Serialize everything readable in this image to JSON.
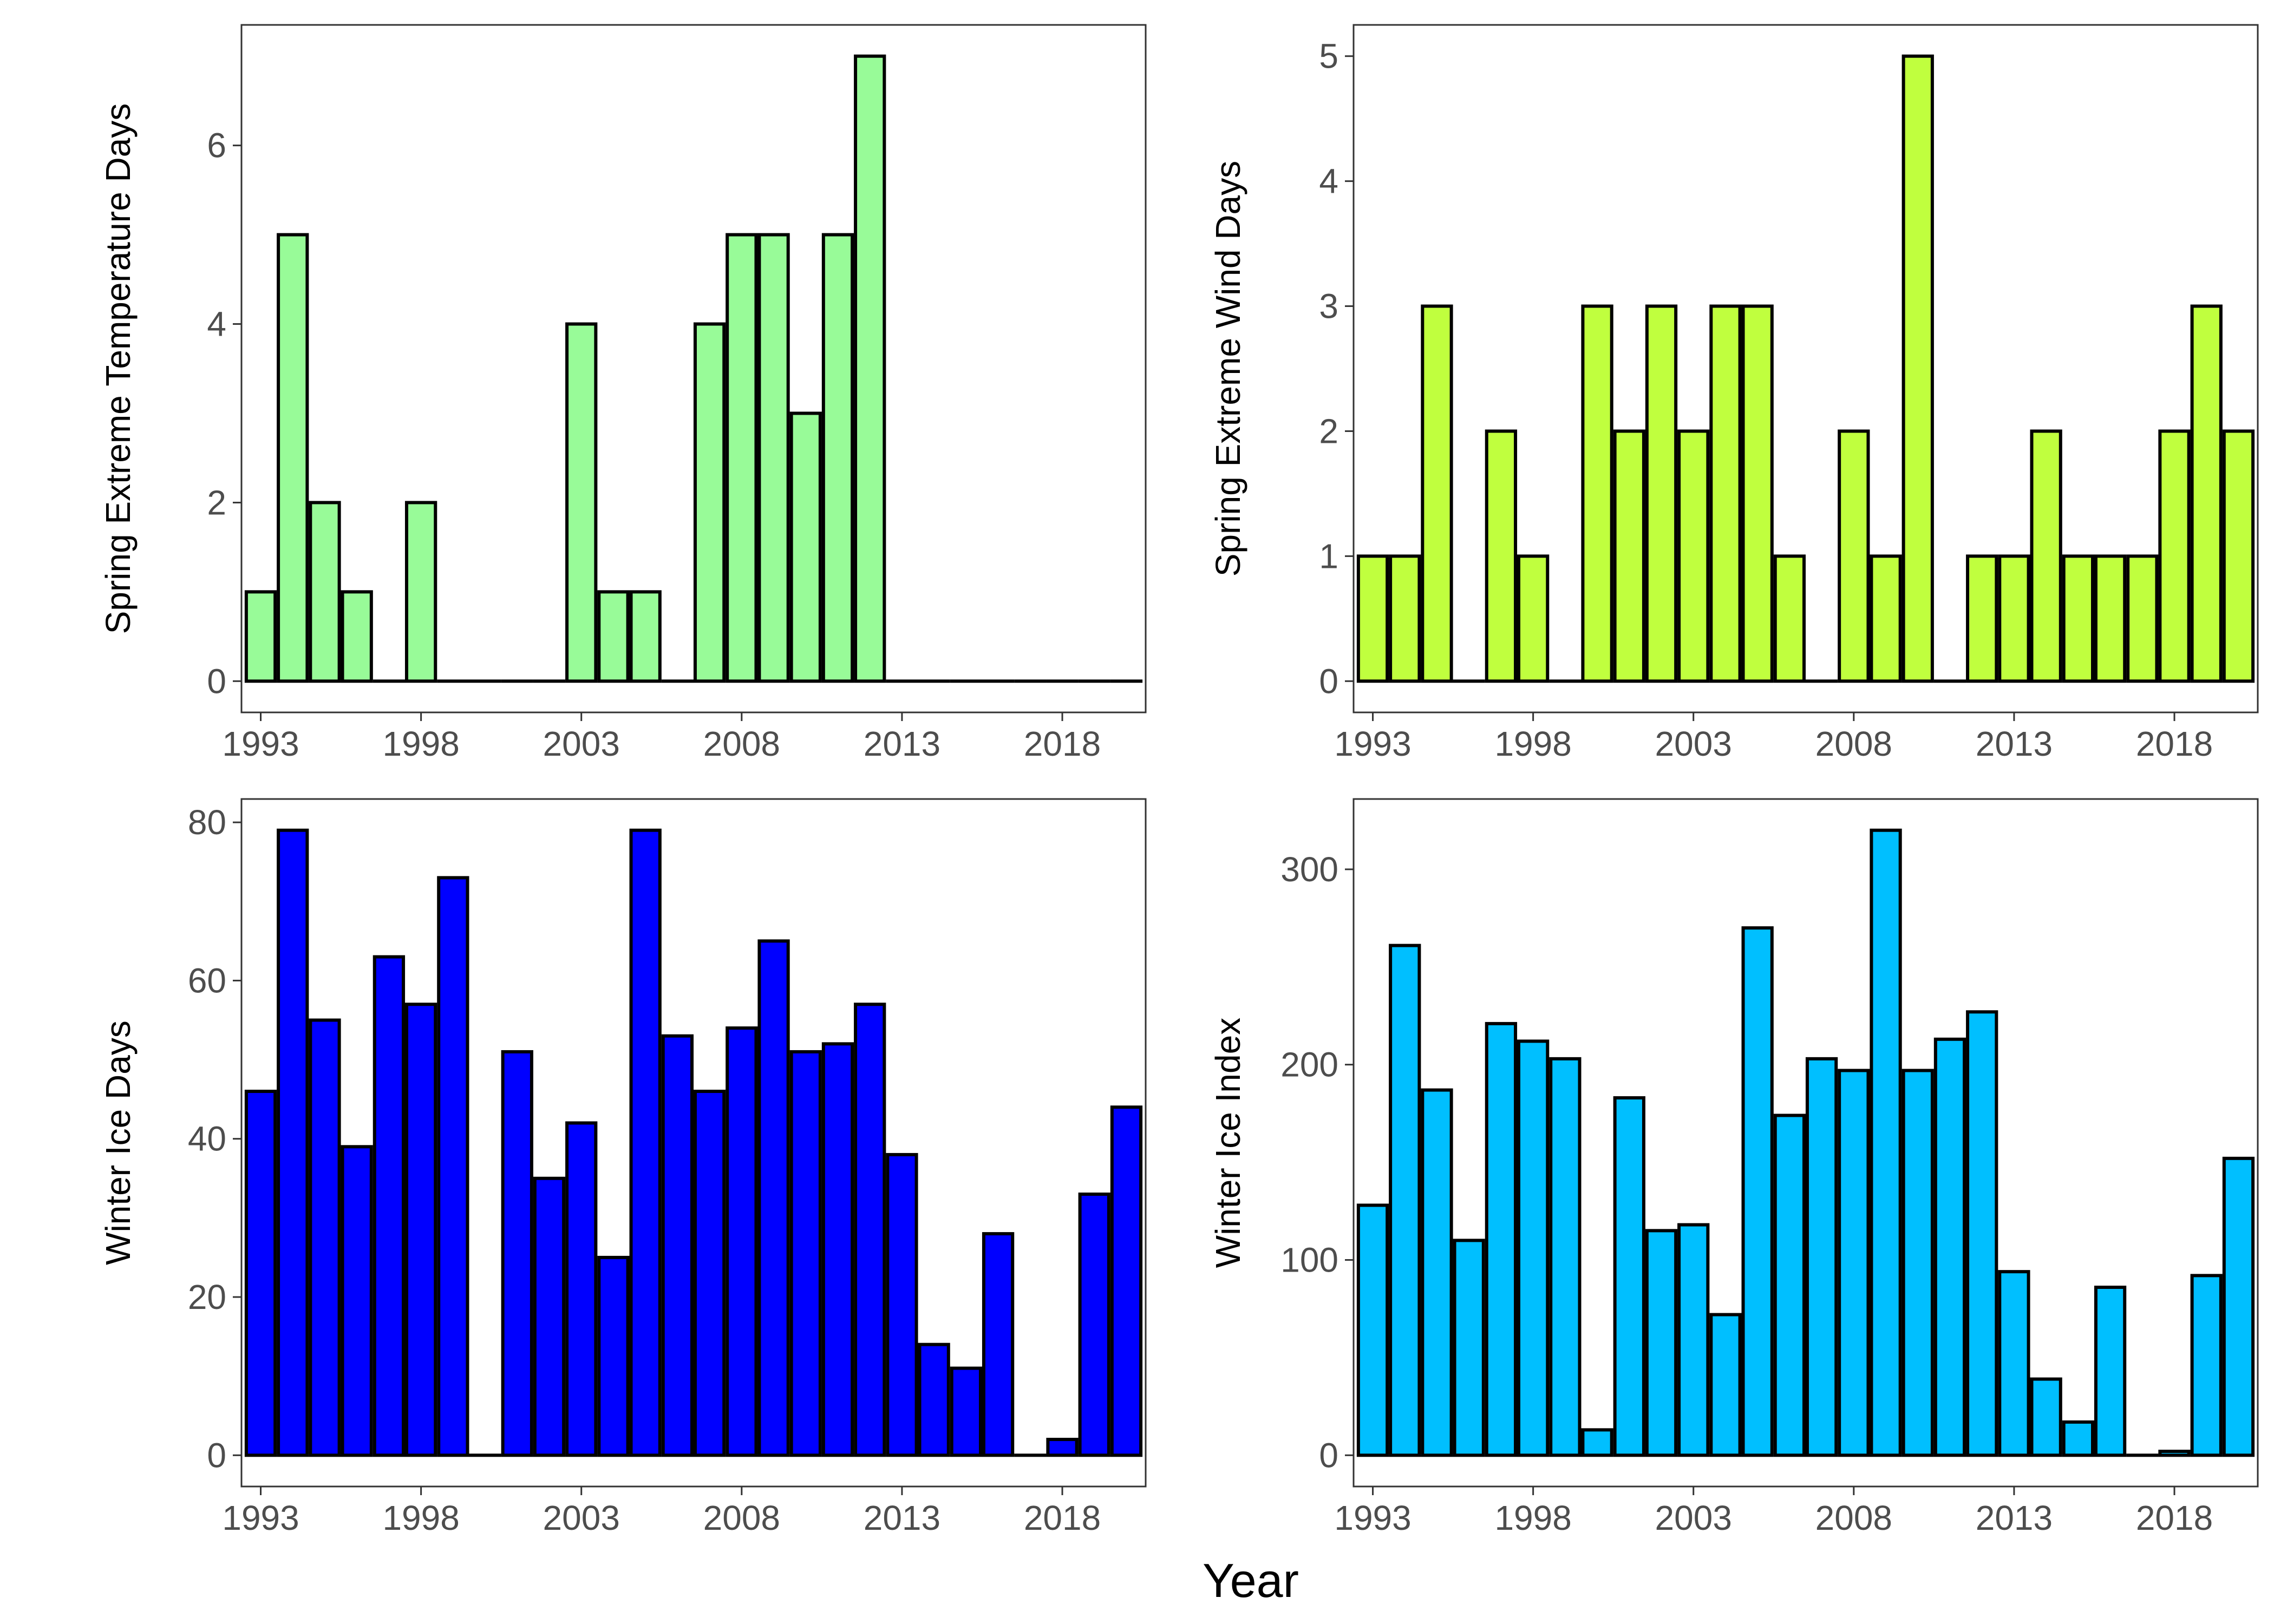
{
  "figure": {
    "xlabel": "Year"
  },
  "chart_data": [
    {
      "id": "spring-temp",
      "type": "bar",
      "title": "",
      "xlabel": "",
      "ylabel": "Spring Extreme Temperature Days",
      "bar_color": "#98fb98",
      "x": [
        1993,
        1994,
        1995,
        1996,
        1997,
        1998,
        1999,
        2000,
        2001,
        2002,
        2003,
        2004,
        2005,
        2006,
        2007,
        2008,
        2009,
        2010,
        2011,
        2012,
        2013,
        2014,
        2015,
        2016,
        2017,
        2018,
        2019,
        2020
      ],
      "values": [
        1,
        5,
        2,
        1,
        0,
        2,
        0,
        0,
        0,
        0,
        4,
        1,
        1,
        0,
        4,
        5,
        5,
        3,
        5,
        7,
        0,
        0,
        0,
        0,
        0,
        0,
        0,
        0
      ],
      "xlim": [
        1992.4,
        2020.6
      ],
      "ylim": [
        -0.35,
        7.35
      ],
      "xticks": [
        1993,
        1998,
        2003,
        2008,
        2013,
        2018
      ],
      "yticks": [
        0,
        2,
        4,
        6
      ],
      "grid": false,
      "legend": "none"
    },
    {
      "id": "spring-wind",
      "type": "bar",
      "title": "",
      "xlabel": "",
      "ylabel": "Spring Extreme Wind Days",
      "bar_color": "#c0ff3e",
      "x": [
        1993,
        1994,
        1995,
        1996,
        1997,
        1998,
        1999,
        2000,
        2001,
        2002,
        2003,
        2004,
        2005,
        2006,
        2007,
        2008,
        2009,
        2010,
        2011,
        2012,
        2013,
        2014,
        2015,
        2016,
        2017,
        2018,
        2019,
        2020
      ],
      "values": [
        1,
        1,
        3,
        0,
        2,
        1,
        0,
        3,
        2,
        3,
        2,
        3,
        3,
        1,
        0,
        2,
        1,
        5,
        0,
        1,
        1,
        2,
        1,
        1,
        1,
        2,
        3,
        2
      ],
      "xlim": [
        1992.4,
        2020.6
      ],
      "ylim": [
        -0.25,
        5.25
      ],
      "xticks": [
        1993,
        1998,
        2003,
        2008,
        2013,
        2018
      ],
      "yticks": [
        0,
        1,
        2,
        3,
        4,
        5
      ],
      "grid": false,
      "legend": "none"
    },
    {
      "id": "winter-ice-days",
      "type": "bar",
      "title": "",
      "xlabel": "",
      "ylabel": "Winter Ice Days",
      "bar_color": "#0000ff",
      "x": [
        1993,
        1994,
        1995,
        1996,
        1997,
        1998,
        1999,
        2000,
        2001,
        2002,
        2003,
        2004,
        2005,
        2006,
        2007,
        2008,
        2009,
        2010,
        2011,
        2012,
        2013,
        2014,
        2015,
        2016,
        2017,
        2018,
        2019,
        2020
      ],
      "values": [
        46,
        79,
        55,
        39,
        63,
        57,
        73,
        0,
        51,
        35,
        42,
        25,
        79,
        53,
        46,
        54,
        65,
        51,
        52,
        57,
        38,
        14,
        11,
        28,
        0,
        2,
        33,
        44
      ],
      "xlim": [
        1992.4,
        2020.6
      ],
      "ylim": [
        -3.95,
        82.95
      ],
      "xticks": [
        1993,
        1998,
        2003,
        2008,
        2013,
        2018
      ],
      "yticks": [
        0,
        20,
        40,
        60,
        80
      ],
      "grid": false,
      "legend": "none"
    },
    {
      "id": "winter-ice-index",
      "type": "bar",
      "title": "",
      "xlabel": "",
      "ylabel": "Winter Ice Index",
      "bar_color": "#00bfff",
      "x": [
        1993,
        1994,
        1995,
        1996,
        1997,
        1998,
        1999,
        2000,
        2001,
        2002,
        2003,
        2004,
        2005,
        2006,
        2007,
        2008,
        2009,
        2010,
        2011,
        2012,
        2013,
        2014,
        2015,
        2016,
        2017,
        2018,
        2019,
        2020
      ],
      "values": [
        128,
        261,
        187,
        110,
        221,
        212,
        203,
        13,
        183,
        115,
        118,
        72,
        270,
        174,
        203,
        197,
        320,
        197,
        213,
        227,
        94,
        39,
        17,
        86,
        0,
        2,
        92,
        152
      ],
      "xlim": [
        1992.4,
        2020.6
      ],
      "ylim": [
        -16,
        336
      ],
      "xticks": [
        1993,
        1998,
        2003,
        2008,
        2013,
        2018
      ],
      "yticks": [
        0,
        100,
        200,
        300
      ],
      "grid": false,
      "legend": "none"
    }
  ]
}
